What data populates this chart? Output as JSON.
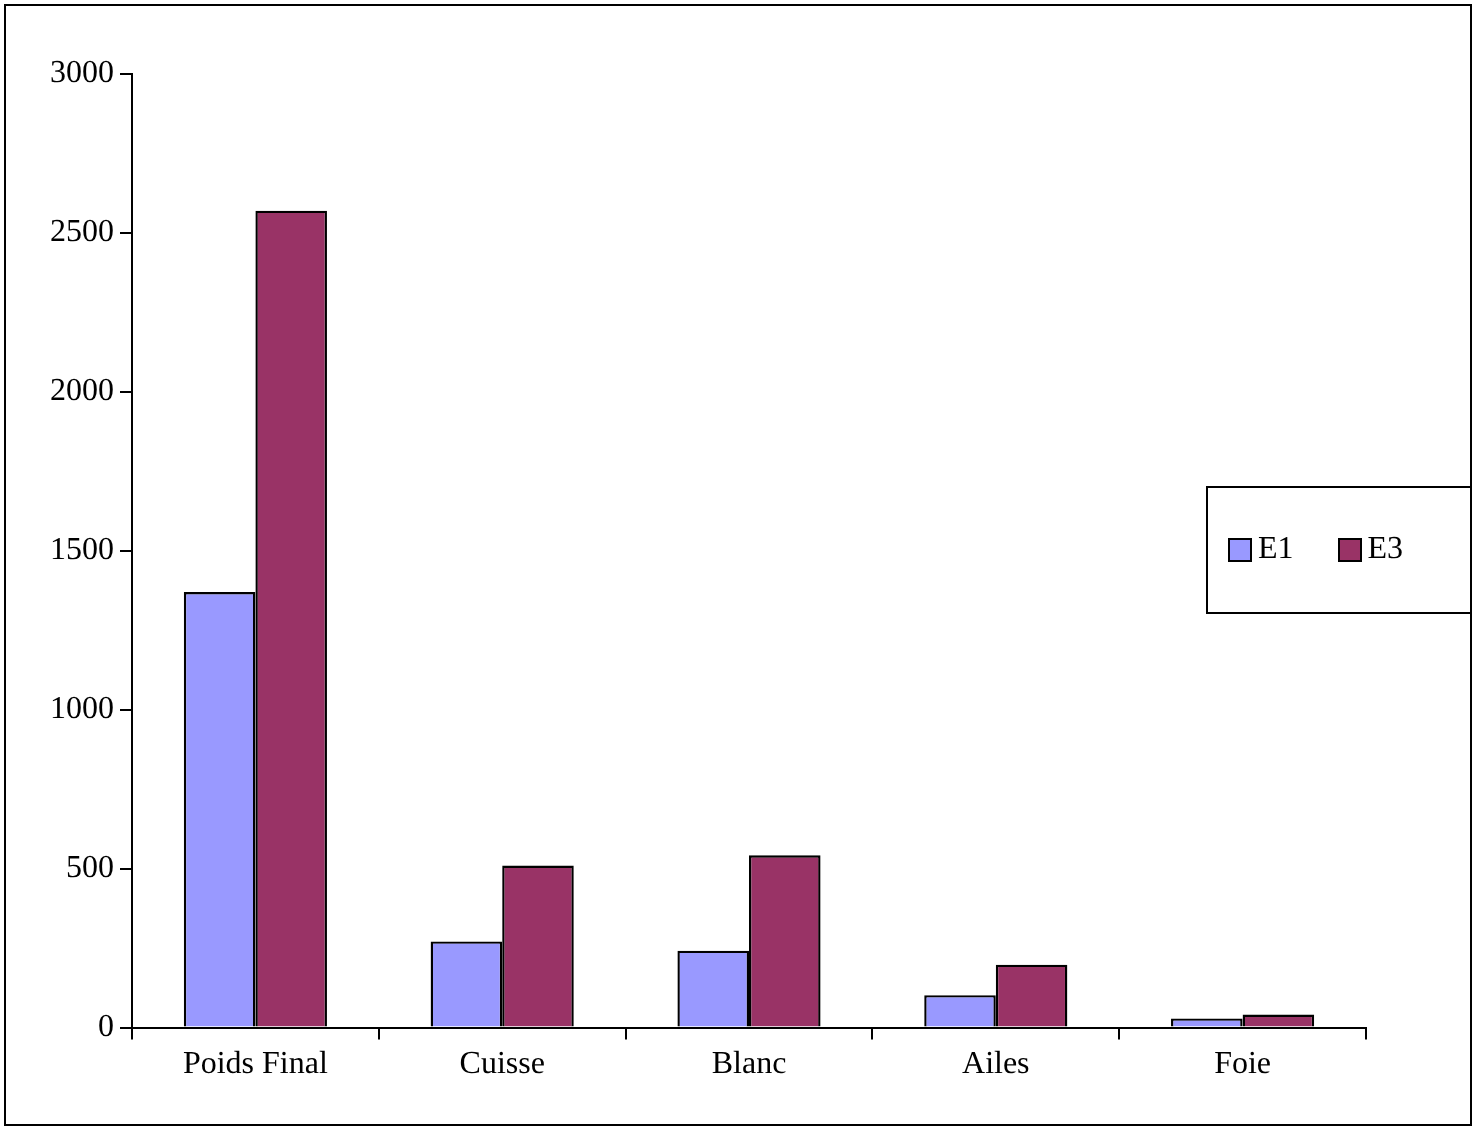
{
  "chart_data": {
    "type": "bar",
    "categories": [
      "Poids Final",
      "Cuisse",
      "Blanc",
      "Ailes",
      "Foie"
    ],
    "series": [
      {
        "name": "E1",
        "color": "#9999ff",
        "values": [
          1370,
          271,
          242,
          102,
          29
        ]
      },
      {
        "name": "E3",
        "color": "#993366",
        "values": [
          2570,
          510,
          542,
          198,
          41
        ]
      }
    ],
    "ylim": [
      0,
      3000
    ],
    "yticks": [
      0,
      500,
      1000,
      1500,
      2000,
      2500,
      3000
    ],
    "grid": false,
    "legend": "right"
  }
}
